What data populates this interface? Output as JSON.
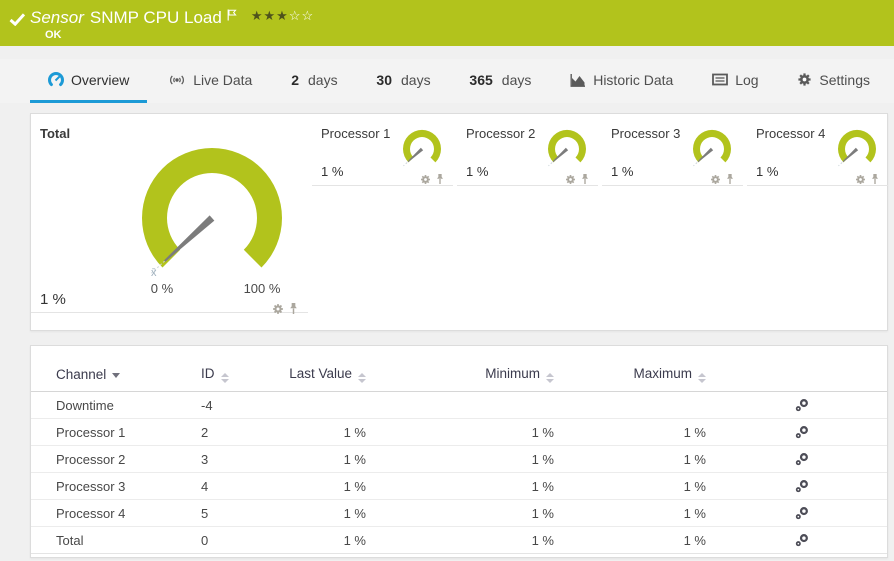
{
  "header": {
    "sensor_word": "Sensor",
    "sensor_name": "SNMP CPU Load",
    "status": "OK",
    "stars_filled": 3,
    "stars_total": 5
  },
  "tabs": {
    "overview": {
      "label": "Overview",
      "icon": "gauge-icon",
      "active": true
    },
    "live_data": {
      "label": "Live Data",
      "icon": "broadcast-icon",
      "active": false
    },
    "days2": {
      "num": "2",
      "unit": "days"
    },
    "days30": {
      "num": "30",
      "unit": "days"
    },
    "days365": {
      "num": "365",
      "unit": "days"
    },
    "historic": {
      "label": "Historic Data",
      "icon": "area-chart-icon",
      "active": false
    },
    "log": {
      "label": "Log",
      "icon": "log-list-icon",
      "active": false
    },
    "settings": {
      "label": "Settings",
      "icon": "gear-icon",
      "active": false
    }
  },
  "gauges": {
    "total": {
      "label": "Total",
      "value": "1 %",
      "value_pct": 1,
      "scale_min": "0 %",
      "scale_max": "100 %",
      "avg_marker": "x̄"
    },
    "processors": [
      {
        "label": "Processor 1",
        "value": "1 %",
        "value_pct": 1
      },
      {
        "label": "Processor 2",
        "value": "1 %",
        "value_pct": 1
      },
      {
        "label": "Processor 3",
        "value": "1 %",
        "value_pct": 1
      },
      {
        "label": "Processor 4",
        "value": "1 %",
        "value_pct": 1
      }
    ]
  },
  "table": {
    "columns": {
      "channel": "Channel",
      "id": "ID",
      "last_value": "Last Value",
      "minimum": "Minimum",
      "maximum": "Maximum"
    },
    "rows": [
      {
        "channel": "Downtime",
        "id": "-4",
        "last_value": "",
        "minimum": "",
        "maximum": ""
      },
      {
        "channel": "Processor 1",
        "id": "2",
        "last_value": "1 %",
        "minimum": "1 %",
        "maximum": "1 %"
      },
      {
        "channel": "Processor 2",
        "id": "3",
        "last_value": "1 %",
        "minimum": "1 %",
        "maximum": "1 %"
      },
      {
        "channel": "Processor 3",
        "id": "4",
        "last_value": "1 %",
        "minimum": "1 %",
        "maximum": "1 %"
      },
      {
        "channel": "Processor 4",
        "id": "5",
        "last_value": "1 %",
        "minimum": "1 %",
        "maximum": "1 %"
      },
      {
        "channel": "Total",
        "id": "0",
        "last_value": "1 %",
        "minimum": "1 %",
        "maximum": "1 %"
      }
    ]
  },
  "colors": {
    "brand_green": "#b2c31c",
    "accent_blue": "#1c9ad6"
  }
}
